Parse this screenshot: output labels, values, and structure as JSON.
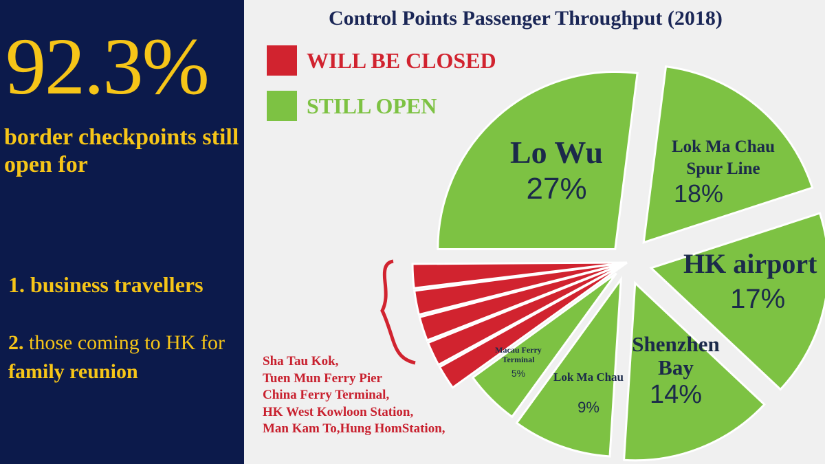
{
  "left_panel": {
    "big_percent": "92.3%",
    "headline": "border checkpoints still open for",
    "item1": "1. business travellers",
    "item2_num": "2.",
    "item2_text": " those coming to HK for ",
    "item2_bold": "family reunion"
  },
  "colors": {
    "panel_bg": "#0c1a4b",
    "accent_yellow": "#f6c518",
    "open_green": "#7dc243",
    "closed_red": "#d1232f",
    "title_navy": "#1a2656"
  },
  "chart_data": {
    "type": "pie",
    "title": "Control Points Passenger Throughput (2018)",
    "legend": [
      {
        "label": "WILL BE CLOSED",
        "color": "#d1232f"
      },
      {
        "label": "STILL OPEN",
        "color": "#7dc243"
      }
    ],
    "slices": [
      {
        "name": "Lo Wu",
        "pct": "27%",
        "value": 27,
        "status": "open"
      },
      {
        "name": "Lok Ma Chau Spur Line",
        "pct": "18%",
        "value": 18,
        "status": "open"
      },
      {
        "name": "HK airport",
        "pct": "17%",
        "value": 17,
        "status": "open"
      },
      {
        "name": "Shenzhen Bay",
        "pct": "14%",
        "value": 14,
        "status": "open"
      },
      {
        "name": "Lok Ma Chau",
        "pct": "9%",
        "value": 9,
        "status": "open"
      },
      {
        "name": "Macau Ferry Terminal",
        "pct": "5%",
        "value": 5,
        "status": "open"
      }
    ],
    "closed_checkpoints": [
      "Sha Tau Kok,",
      "Tuen Mun Ferry Pier",
      "China Ferry Terminal,",
      "HK West Kowloon Station,",
      "Man Kam To,Hung HomStation,"
    ]
  }
}
